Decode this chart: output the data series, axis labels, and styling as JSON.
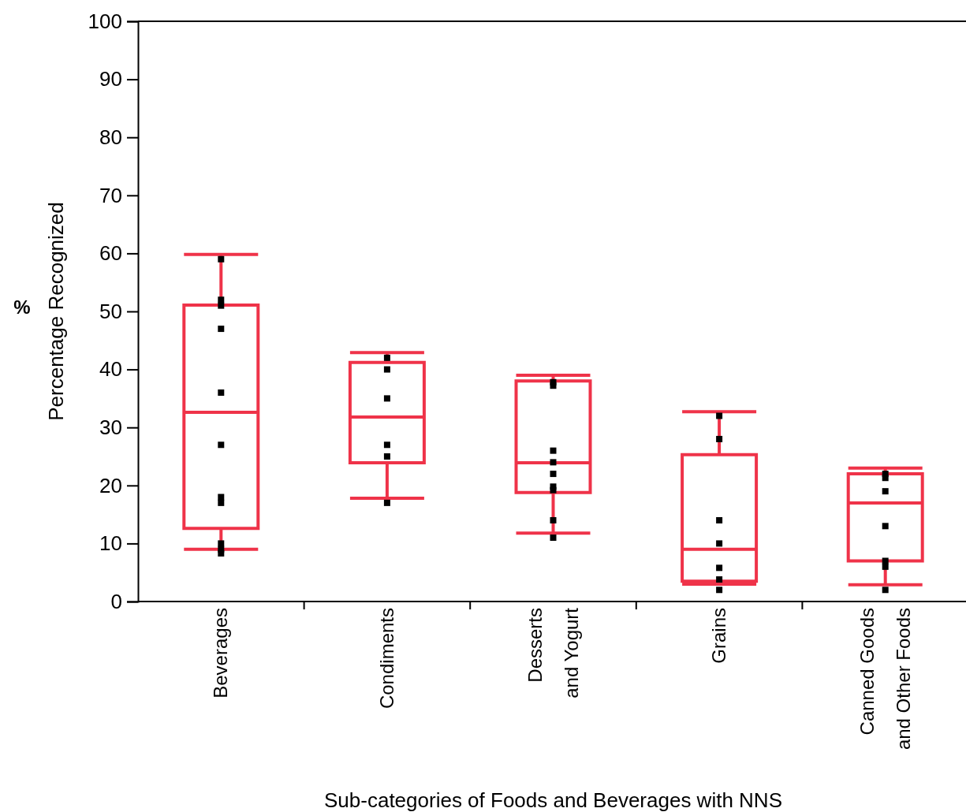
{
  "chart_data": {
    "type": "box",
    "xlabel": "Sub-categories of Foods and Beverages with NNS",
    "ylabel": "Percentage Recognized",
    "annotations": [
      "%"
    ],
    "categories": [
      "Beverages",
      "Condiments",
      "Desserts\nand Yogurt",
      "Grains",
      "Canned Goods\nand Other Foods"
    ],
    "ylim": [
      0,
      100
    ],
    "yticks": [
      0,
      10,
      20,
      30,
      40,
      50,
      60,
      70,
      80,
      90,
      100
    ],
    "grid": false,
    "series": [
      {
        "type": "box",
        "color": "#ef3349",
        "boxes": [
          {
            "low": 9,
            "q1": 12.6,
            "median": 32.6,
            "q3": 51.1,
            "high": 59.8
          },
          {
            "low": 17.8,
            "q1": 23.9,
            "median": 31.8,
            "q3": 41.2,
            "high": 42.9
          },
          {
            "low": 11.8,
            "q1": 18.8,
            "median": 23.9,
            "q3": 38,
            "high": 39
          },
          {
            "low": 3,
            "q1": 3.5,
            "median": 9,
            "q3": 25.3,
            "high": 32.7
          },
          {
            "low": 2.9,
            "q1": 7,
            "median": 17,
            "q3": 22,
            "high": 23
          }
        ]
      },
      {
        "type": "scatter",
        "color": "#000000",
        "marker": "square",
        "x": [
          "Beverages",
          "Beverages",
          "Beverages",
          "Beverages",
          "Beverages",
          "Beverages",
          "Beverages",
          "Beverages",
          "Beverages",
          "Beverages",
          "Beverages",
          "Condiments",
          "Condiments",
          "Condiments",
          "Condiments",
          "Condiments",
          "Condiments",
          "Desserts\nand Yogurt",
          "Desserts\nand Yogurt",
          "Desserts\nand Yogurt",
          "Desserts\nand Yogurt",
          "Desserts\nand Yogurt",
          "Desserts\nand Yogurt",
          "Desserts\nand Yogurt",
          "Desserts\nand Yogurt",
          "Desserts\nand Yogurt",
          "Grains",
          "Grains",
          "Grains",
          "Grains",
          "Grains",
          "Grains",
          "Grains",
          "Canned Goods\nand Other Foods",
          "Canned Goods\nand Other Foods",
          "Canned Goods\nand Other Foods",
          "Canned Goods\nand Other Foods",
          "Canned Goods\nand Other Foods",
          "Canned Goods\nand Other Foods",
          "Canned Goods\nand Other Foods"
        ],
        "values": [
          59,
          52,
          51,
          47,
          36,
          27,
          18,
          17,
          10,
          9,
          8.3,
          42,
          40,
          35,
          27,
          25,
          17,
          37.8,
          37.2,
          26,
          24,
          22,
          19.8,
          19.2,
          14,
          11,
          32,
          28,
          14,
          10,
          5.8,
          3.8,
          2,
          22,
          21.3,
          19,
          13,
          7,
          6,
          2
        ]
      }
    ]
  }
}
